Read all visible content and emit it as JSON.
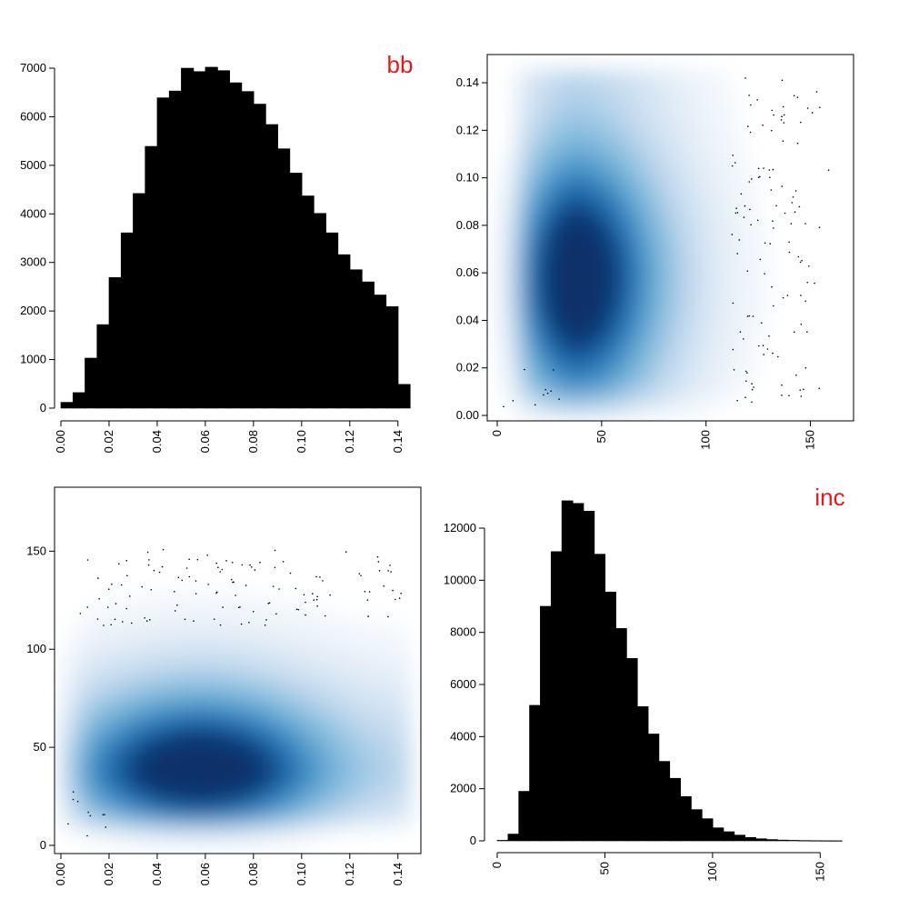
{
  "chart_data": [
    {
      "panel": "top-left",
      "type": "bar",
      "title": "bb",
      "title_color": "#e31a1c",
      "bar_color": "#000000",
      "bin_edges": [
        0.0,
        0.005,
        0.01,
        0.015,
        0.02,
        0.025,
        0.03,
        0.035,
        0.04,
        0.045,
        0.05,
        0.055,
        0.06,
        0.065,
        0.07,
        0.075,
        0.08,
        0.085,
        0.09,
        0.095,
        0.1,
        0.105,
        0.11,
        0.115,
        0.12,
        0.125,
        0.13,
        0.135,
        0.14,
        0.145
      ],
      "values": [
        120,
        320,
        1030,
        1720,
        2690,
        3610,
        4420,
        5390,
        6390,
        6530,
        7000,
        6930,
        7020,
        6950,
        6700,
        6520,
        6260,
        5840,
        5340,
        4840,
        4370,
        4010,
        3610,
        3160,
        2850,
        2600,
        2330,
        2090,
        490
      ],
      "xlim": [
        0.0,
        0.145
      ],
      "ylim": [
        0,
        7000
      ],
      "x_ticks": [
        "0.00",
        "0.02",
        "0.04",
        "0.06",
        "0.08",
        "0.10",
        "0.12",
        "0.14"
      ],
      "y_ticks": [
        "0",
        "1000",
        "2000",
        "3000",
        "4000",
        "5000",
        "6000",
        "7000"
      ]
    },
    {
      "panel": "top-right",
      "type": "heatmap",
      "style": "smoothScatter",
      "xlim": [
        0,
        165
      ],
      "ylim": [
        0,
        0.145
      ],
      "x_ticks": [
        "0",
        "50",
        "100",
        "150"
      ],
      "y_ticks": [
        "0.00",
        "0.02",
        "0.04",
        "0.06",
        "0.08",
        "0.10",
        "0.12",
        "0.14"
      ],
      "density_peak": {
        "x": 38,
        "y": 0.055
      },
      "color_high": "#08306b",
      "color_low": "#ffffff"
    },
    {
      "panel": "bottom-left",
      "type": "heatmap",
      "style": "smoothScatter",
      "xlim": [
        0.0,
        0.145
      ],
      "ylim": [
        0,
        165
      ],
      "x_ticks": [
        "0.00",
        "0.02",
        "0.04",
        "0.06",
        "0.08",
        "0.10",
        "0.12",
        "0.14"
      ],
      "y_ticks": [
        "0",
        "50",
        "100",
        "150"
      ],
      "density_peak": {
        "x": 0.062,
        "y": 37
      },
      "color_high": "#08306b",
      "color_low": "#ffffff"
    },
    {
      "panel": "bottom-right",
      "type": "bar",
      "title": "inc",
      "title_color": "#e31a1c",
      "bar_color": "#000000",
      "bin_edges": [
        0,
        5,
        10,
        15,
        20,
        25,
        30,
        35,
        40,
        45,
        50,
        55,
        60,
        65,
        70,
        75,
        80,
        85,
        90,
        95,
        100,
        105,
        110,
        115,
        120,
        125,
        130,
        135,
        140,
        145,
        150,
        155,
        160
      ],
      "values": [
        20,
        260,
        1900,
        5200,
        9000,
        11100,
        13050,
        12950,
        12650,
        11000,
        9550,
        8150,
        7000,
        5150,
        4100,
        3050,
        2400,
        1700,
        1200,
        850,
        500,
        350,
        220,
        130,
        80,
        50,
        30,
        20,
        12,
        8,
        5,
        3
      ],
      "xlim": [
        0,
        160
      ],
      "ylim": [
        0,
        12000
      ],
      "x_ticks": [
        "0",
        "50",
        "100",
        "150"
      ],
      "y_ticks": [
        "0",
        "2000",
        "4000",
        "6000",
        "8000",
        "10000",
        "12000"
      ]
    }
  ]
}
